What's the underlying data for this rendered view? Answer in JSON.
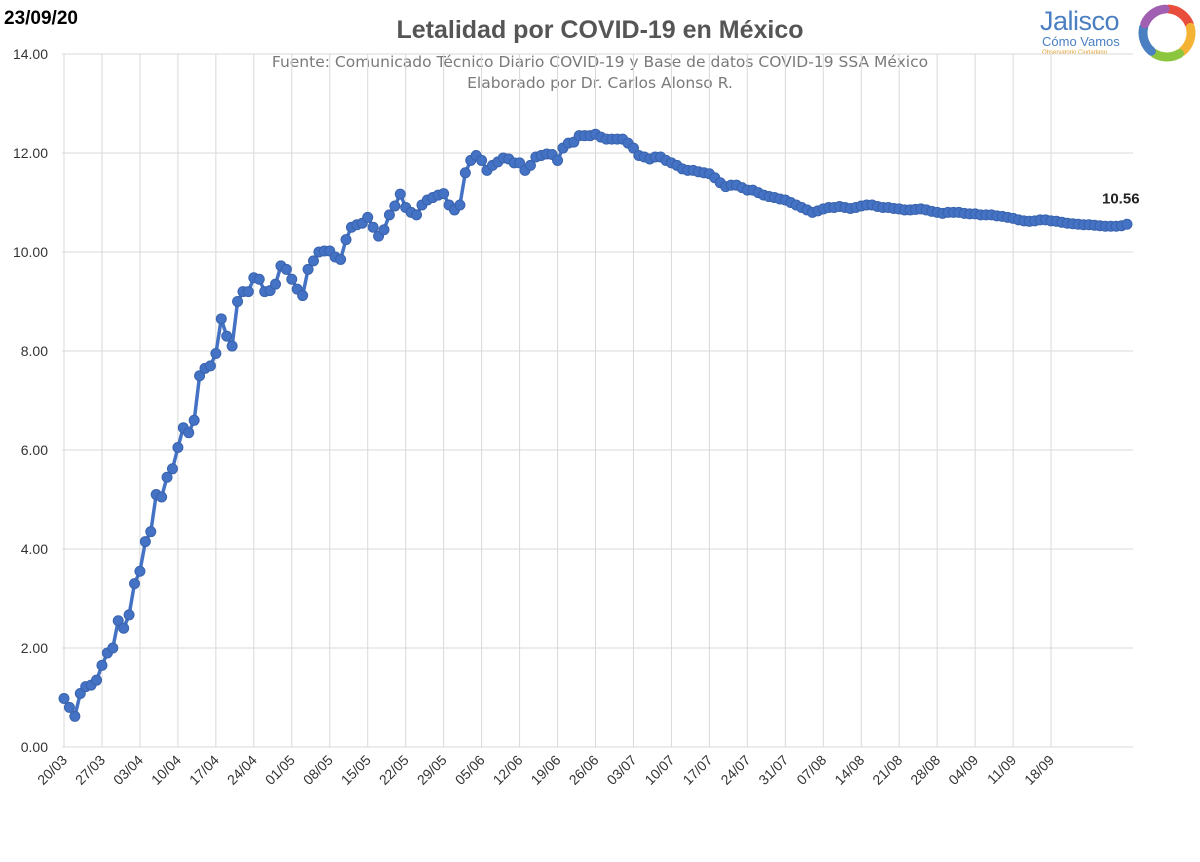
{
  "date_stamp": "23/09/20",
  "logo": {
    "word": "Jalisco",
    "sub": "Cómo Vamos",
    "sub2": "Observatorio Ciudadano",
    "ring_colors": [
      "#e94e3c",
      "#f5b335",
      "#8cc63f",
      "#4a7fc1",
      "#a05fb0"
    ]
  },
  "chart_data": {
    "type": "line",
    "title": "Letalidad por COVID-19 en México",
    "subtitle_lines": [
      "Fuente: Comunicado Técnico Diario COVID-19 y Base de datos COVID-19 SSA México",
      "Elaborado por Dr. Carlos Alonso R."
    ],
    "xlabel": "",
    "ylabel": "",
    "ylim": [
      0,
      14
    ],
    "y_ticks": [
      "0.00",
      "2.00",
      "4.00",
      "6.00",
      "8.00",
      "10.00",
      "12.00",
      "14.00"
    ],
    "x_start": "20/03",
    "x_end": "23/09",
    "x_ticks": [
      "20/03",
      "27/03",
      "03/04",
      "10/04",
      "17/04",
      "24/04",
      "01/05",
      "08/05",
      "15/05",
      "22/05",
      "29/05",
      "05/06",
      "12/06",
      "19/06",
      "26/06",
      "03/07",
      "10/07",
      "17/07",
      "24/07",
      "31/07",
      "07/08",
      "14/08",
      "21/08",
      "28/08",
      "04/09",
      "11/09",
      "18/09"
    ],
    "grid": true,
    "line_color": "#4472c4",
    "end_label": "10.56",
    "series": [
      {
        "values": [
          0.98,
          0.8,
          0.62,
          1.08,
          1.22,
          1.25,
          1.35,
          1.65,
          1.9,
          2.0,
          2.55,
          2.4,
          2.67,
          3.3,
          3.55,
          4.15,
          4.35,
          5.1,
          5.05,
          5.45,
          5.62,
          6.05,
          6.45,
          6.35,
          6.6,
          7.5,
          7.65,
          7.7,
          7.95,
          8.65,
          8.3,
          8.1,
          9.0,
          9.2,
          9.2,
          9.48,
          9.45,
          9.2,
          9.22,
          9.35,
          9.72,
          9.65,
          9.45,
          9.25,
          9.12,
          9.65,
          9.82,
          10.0,
          10.02,
          10.02,
          9.9,
          9.85,
          10.25,
          10.5,
          10.55,
          10.58,
          10.7,
          10.5,
          10.32,
          10.45,
          10.75,
          10.93,
          11.17,
          10.9,
          10.8,
          10.75,
          10.95,
          11.05,
          11.1,
          11.15,
          11.18,
          10.95,
          10.85,
          10.95,
          11.6,
          11.85,
          11.95,
          11.85,
          11.65,
          11.75,
          11.82,
          11.9,
          11.88,
          11.8,
          11.8,
          11.65,
          11.75,
          11.92,
          11.95,
          11.98,
          11.97,
          11.85,
          12.1,
          12.2,
          12.22,
          12.35,
          12.35,
          12.35,
          12.38,
          12.32,
          12.28,
          12.28,
          12.28,
          12.28,
          12.2,
          12.1,
          11.95,
          11.92,
          11.88,
          11.92,
          11.92,
          11.85,
          11.8,
          11.75,
          11.68,
          11.65,
          11.65,
          11.62,
          11.6,
          11.58,
          11.5,
          11.4,
          11.32,
          11.35,
          11.35,
          11.3,
          11.25,
          11.25,
          11.2,
          11.15,
          11.12,
          11.1,
          11.07,
          11.05,
          11.0,
          10.95,
          10.9,
          10.85,
          10.8,
          10.83,
          10.87,
          10.9,
          10.9,
          10.92,
          10.9,
          10.88,
          10.9,
          10.93,
          10.95,
          10.95,
          10.92,
          10.9,
          10.9,
          10.88,
          10.87,
          10.85,
          10.85,
          10.86,
          10.87,
          10.85,
          10.82,
          10.8,
          10.78,
          10.8,
          10.8,
          10.8,
          10.78,
          10.77,
          10.77,
          10.75,
          10.75,
          10.75,
          10.73,
          10.72,
          10.7,
          10.68,
          10.65,
          10.63,
          10.62,
          10.63,
          10.65,
          10.65,
          10.63,
          10.62,
          10.6,
          10.58,
          10.57,
          10.56,
          10.55,
          10.55,
          10.54,
          10.53,
          10.52,
          10.52,
          10.52,
          10.53,
          10.56
        ]
      }
    ]
  }
}
